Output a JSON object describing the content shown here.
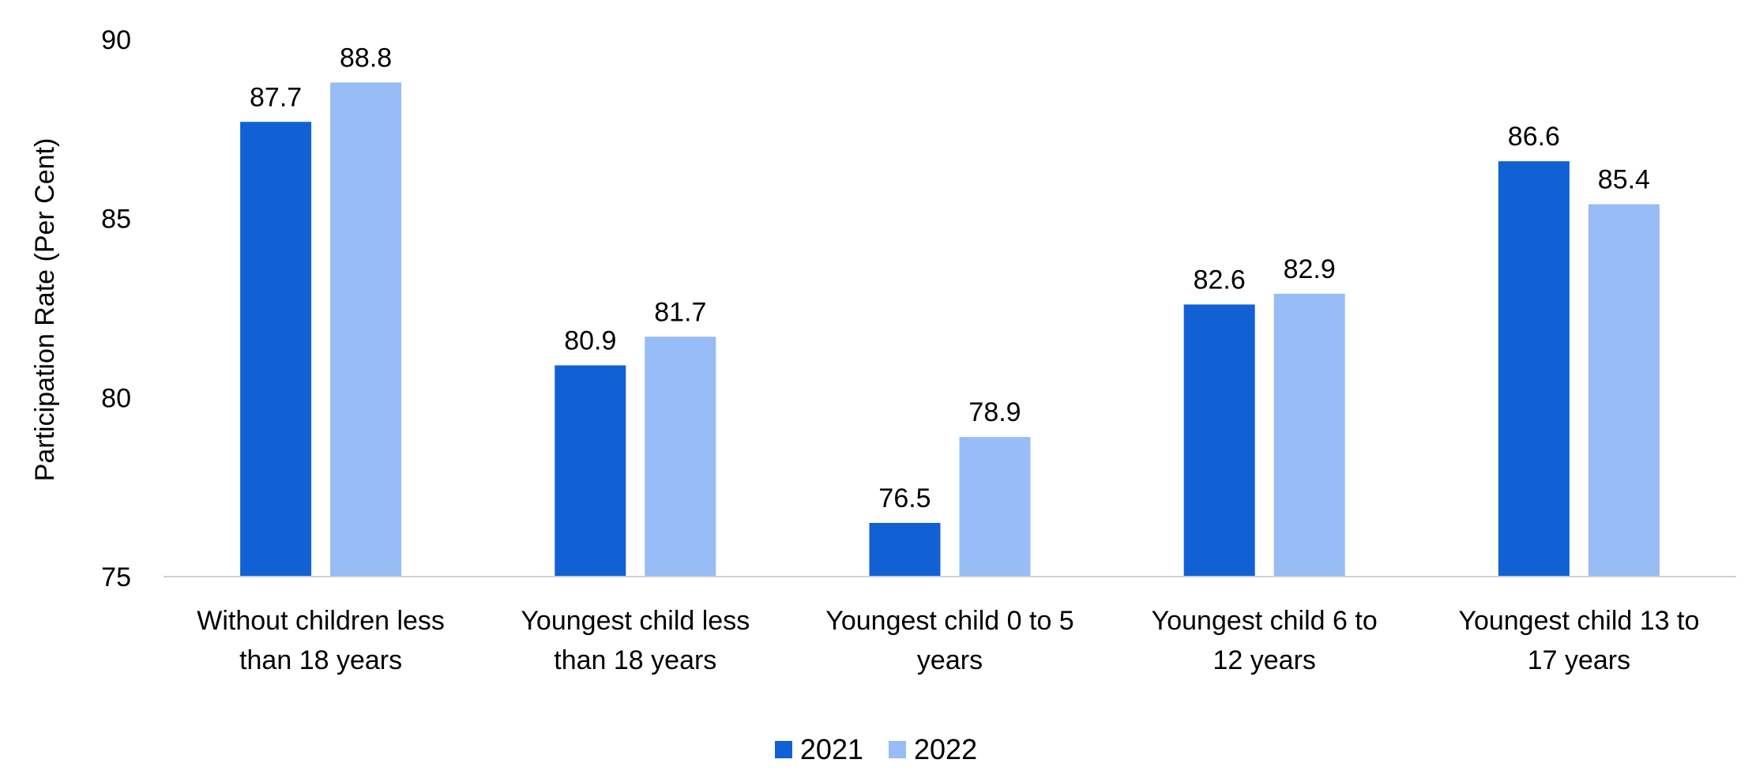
{
  "chart_data": {
    "type": "bar",
    "title": "",
    "xlabel": "",
    "ylabel": "Participation Rate (Per Cent)",
    "ylim": [
      75,
      90
    ],
    "yticks": [
      "75",
      "80",
      "85",
      "90"
    ],
    "grid": false,
    "legend_position": "bottom",
    "categories": [
      [
        "Without children less",
        "than 18 years"
      ],
      [
        "Youngest child less",
        "than 18 years"
      ],
      [
        "Youngest child 0 to 5",
        "years"
      ],
      [
        "Youngest child 6 to",
        "12 years"
      ],
      [
        "Youngest child 13 to",
        "17 years"
      ]
    ],
    "series": [
      {
        "name": "2021",
        "color": "#1261D4",
        "values": [
          87.7,
          80.9,
          76.5,
          82.6,
          86.6
        ],
        "labels": [
          "87.7",
          "80.9",
          "76.5",
          "82.6",
          "86.6"
        ]
      },
      {
        "name": "2022",
        "color": "#97BCF6",
        "values": [
          88.8,
          81.7,
          78.9,
          82.9,
          85.4
        ],
        "labels": [
          "88.8",
          "81.7",
          "78.9",
          "82.9",
          "85.4"
        ]
      }
    ]
  }
}
